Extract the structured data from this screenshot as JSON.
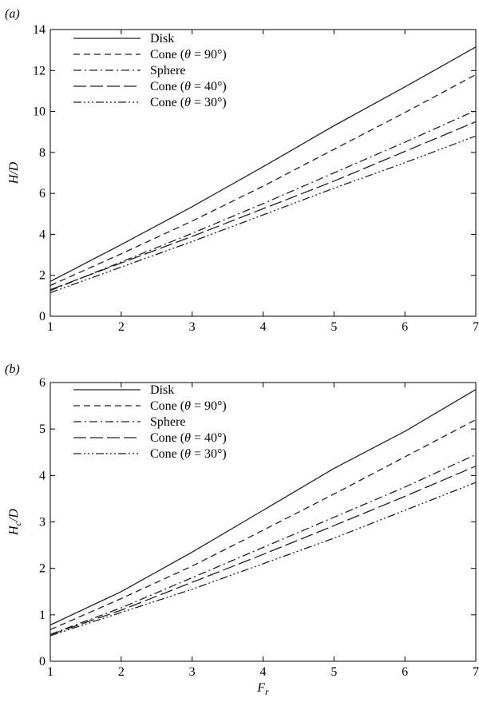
{
  "chart_data": [
    {
      "panel_label": "(a)",
      "type": "line",
      "xlabel": "",
      "ylabel": {
        "main": "H",
        "sub": "",
        "tail": "/D"
      },
      "xlim": [
        1,
        7
      ],
      "ylim": [
        0,
        14
      ],
      "xticks": [
        1,
        2,
        3,
        4,
        5,
        6,
        7
      ],
      "yticks": [
        0,
        2,
        4,
        6,
        8,
        10,
        12,
        14
      ],
      "legend_position": "top-left",
      "series": [
        {
          "name": "Disk",
          "legend": {
            "pre": "Disk",
            "theta": "",
            "post": ""
          },
          "dash": "solid",
          "x": [
            1,
            2,
            3,
            4,
            5,
            6,
            7
          ],
          "y": [
            1.7,
            3.5,
            5.35,
            7.3,
            9.3,
            11.2,
            13.15
          ]
        },
        {
          "name": "Cone (θ = 90°)",
          "legend": {
            "pre": "Cone (",
            "theta": "θ",
            "post": " = 90°)"
          },
          "dash": "dash",
          "x": [
            1,
            2,
            3,
            4,
            5,
            6,
            7
          ],
          "y": [
            1.5,
            3.05,
            4.65,
            6.35,
            8.15,
            9.95,
            11.8
          ]
        },
        {
          "name": "Sphere",
          "legend": {
            "pre": "Sphere",
            "theta": "",
            "post": ""
          },
          "dash": "dashdot",
          "x": [
            1,
            2,
            3,
            4,
            5,
            6,
            7
          ],
          "y": [
            1.25,
            2.65,
            4.05,
            5.5,
            7.0,
            8.5,
            10.05
          ]
        },
        {
          "name": "Cone (θ = 40°)",
          "legend": {
            "pre": "Cone (",
            "theta": "θ",
            "post": " = 40°)"
          },
          "dash": "longdash",
          "x": [
            1,
            2,
            3,
            4,
            5,
            6,
            7
          ],
          "y": [
            1.3,
            2.6,
            3.9,
            5.25,
            6.6,
            8.05,
            9.5
          ]
        },
        {
          "name": "Cone (θ = 30°)",
          "legend": {
            "pre": "Cone (",
            "theta": "θ",
            "post": " = 30°)"
          },
          "dash": "dashdotdotdot",
          "x": [
            1,
            2,
            3,
            4,
            5,
            6,
            7
          ],
          "y": [
            1.15,
            2.4,
            3.65,
            4.95,
            6.25,
            7.5,
            8.8
          ]
        }
      ]
    },
    {
      "panel_label": "(b)",
      "type": "line",
      "xlabel": {
        "main": "F",
        "sub": "r"
      },
      "ylabel": {
        "main": "H",
        "sub": "c",
        "tail": "/D"
      },
      "xlim": [
        1,
        7
      ],
      "ylim": [
        0,
        6
      ],
      "xticks": [
        1,
        2,
        3,
        4,
        5,
        6,
        7
      ],
      "yticks": [
        0,
        1,
        2,
        3,
        4,
        5,
        6
      ],
      "legend_position": "top-left",
      "series": [
        {
          "name": "Disk",
          "legend": {
            "pre": "Disk",
            "theta": "",
            "post": ""
          },
          "dash": "solid",
          "x": [
            1,
            2,
            3,
            4,
            5,
            6,
            7
          ],
          "y": [
            0.78,
            1.5,
            2.35,
            3.25,
            4.15,
            4.95,
            5.85
          ]
        },
        {
          "name": "Cone (θ = 90°)",
          "legend": {
            "pre": "Cone (",
            "theta": "θ",
            "post": " = 90°)"
          },
          "dash": "dash",
          "x": [
            1,
            2,
            3,
            4,
            5,
            6,
            7
          ],
          "y": [
            0.68,
            1.35,
            2.05,
            2.82,
            3.6,
            4.4,
            5.2
          ]
        },
        {
          "name": "Sphere",
          "legend": {
            "pre": "Sphere",
            "theta": "",
            "post": ""
          },
          "dash": "dashdot",
          "x": [
            1,
            2,
            3,
            4,
            5,
            6,
            7
          ],
          "y": [
            0.58,
            1.15,
            1.8,
            2.45,
            3.1,
            3.75,
            4.45
          ]
        },
        {
          "name": "Cone (θ = 40°)",
          "legend": {
            "pre": "Cone (",
            "theta": "θ",
            "post": " = 40°)"
          },
          "dash": "longdash",
          "x": [
            1,
            2,
            3,
            4,
            5,
            6,
            7
          ],
          "y": [
            0.57,
            1.1,
            1.7,
            2.3,
            2.92,
            3.55,
            4.2
          ]
        },
        {
          "name": "Cone (θ = 30°)",
          "legend": {
            "pre": "Cone (",
            "theta": "θ",
            "post": " = 30°)"
          },
          "dash": "dashdotdotdot",
          "x": [
            1,
            2,
            3,
            4,
            5,
            6,
            7
          ],
          "y": [
            0.55,
            1.05,
            1.55,
            2.1,
            2.65,
            3.25,
            3.85
          ]
        }
      ]
    }
  ]
}
